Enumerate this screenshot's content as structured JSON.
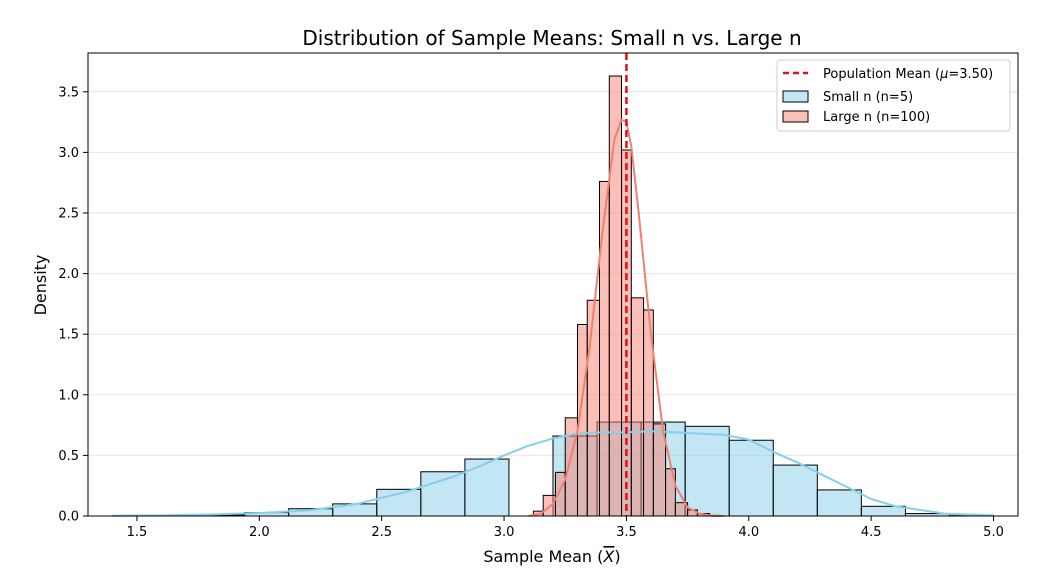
{
  "chart_data": {
    "type": "histogram",
    "title": "Distribution of Sample Means: Small n vs. Large n",
    "xlabel": "Sample Mean (X̄)",
    "xlabel_main": "Sample Mean (",
    "xlabel_symbol": "X",
    "xlabel_close": ")",
    "ylabel": "Density",
    "xlim": [
      1.3,
      5.1
    ],
    "ylim": [
      0,
      3.82
    ],
    "xticks": [
      1.5,
      2.0,
      2.5,
      3.0,
      3.5,
      4.0,
      4.5,
      5.0
    ],
    "xtick_labels": [
      "1.5",
      "2.0",
      "2.5",
      "3.0",
      "3.5",
      "4.0",
      "4.5",
      "5.0"
    ],
    "yticks": [
      0.0,
      0.5,
      1.0,
      1.5,
      2.0,
      2.5,
      3.0,
      3.5
    ],
    "ytick_labels": [
      "0.0",
      "0.5",
      "1.0",
      "1.5",
      "2.0",
      "2.5",
      "3.0",
      "3.5"
    ],
    "grid": "y",
    "legend_position": "upper right",
    "reference_line": {
      "x": 3.5,
      "label": "Population Mean (μ=3.50)",
      "label_prefix": "Population Mean (",
      "label_symbol": "μ",
      "label_suffix": "=3.50)",
      "color": "#e0101a",
      "style": "dashed"
    },
    "series": [
      {
        "name": "Small n (n=5)",
        "fill_color": "#87ceeb",
        "fill_opacity": 0.5,
        "kde_color": "#87ceeb",
        "bin_edges": [
          1.4,
          1.58,
          1.76,
          1.94,
          2.12,
          2.3,
          2.48,
          2.66,
          2.84,
          3.02,
          3.2,
          3.38,
          3.56,
          3.74,
          3.92,
          4.1,
          4.28,
          4.46,
          4.64,
          4.82,
          5.0
        ],
        "values": [
          0.003,
          0.003,
          0.008,
          0.028,
          0.06,
          0.1,
          0.22,
          0.365,
          0.47,
          0.0,
          0.66,
          0.775,
          0.775,
          0.74,
          0.625,
          0.42,
          0.215,
          0.08,
          0.02,
          0.003
        ],
        "kde_x": [
          1.4,
          1.6,
          1.8,
          2.0,
          2.2,
          2.4,
          2.6,
          2.8,
          2.9,
          3.0,
          3.1,
          3.2,
          3.3,
          3.4,
          3.5,
          3.6,
          3.7,
          3.8,
          3.9,
          4.0,
          4.1,
          4.2,
          4.3,
          4.4,
          4.5,
          4.6,
          4.8,
          5.0
        ],
        "kde_y": [
          0.002,
          0.005,
          0.012,
          0.025,
          0.045,
          0.1,
          0.2,
          0.33,
          0.41,
          0.5,
          0.58,
          0.64,
          0.68,
          0.69,
          0.69,
          0.7,
          0.69,
          0.68,
          0.67,
          0.63,
          0.53,
          0.44,
          0.34,
          0.24,
          0.14,
          0.08,
          0.02,
          0.005
        ]
      },
      {
        "name": "Large n (n=100)",
        "fill_color": "#fa8072",
        "fill_opacity": 0.5,
        "kde_color": "#f08070",
        "bin_edges": [
          3.12,
          3.16,
          3.21,
          3.25,
          3.3,
          3.34,
          3.39,
          3.43,
          3.48,
          3.52,
          3.57,
          3.61,
          3.66,
          3.7,
          3.75,
          3.79,
          3.84,
          3.88
        ],
        "values": [
          0.04,
          0.17,
          0.36,
          0.81,
          1.58,
          1.78,
          2.76,
          3.63,
          3.02,
          1.8,
          1.7,
          0.76,
          0.39,
          0.11,
          0.05,
          0.02,
          0.005
        ],
        "kde_x": [
          3.1,
          3.15,
          3.2,
          3.25,
          3.3,
          3.35,
          3.4,
          3.45,
          3.48,
          3.5,
          3.52,
          3.55,
          3.6,
          3.65,
          3.7,
          3.75,
          3.8,
          3.85,
          3.9
        ],
        "kde_y": [
          0.0,
          0.02,
          0.1,
          0.3,
          0.7,
          1.4,
          2.3,
          3.1,
          3.27,
          3.25,
          3.05,
          2.5,
          1.5,
          0.7,
          0.25,
          0.07,
          0.02,
          0.0,
          0.0
        ]
      }
    ]
  }
}
